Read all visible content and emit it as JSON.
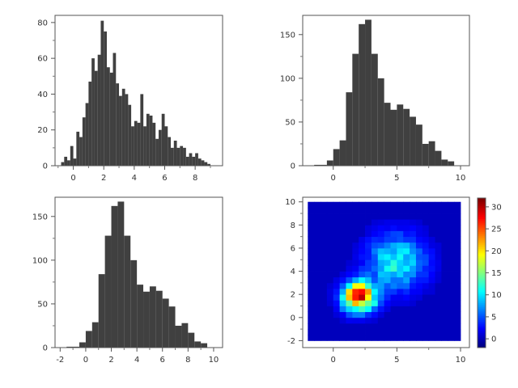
{
  "chart_data": [
    {
      "type": "bar",
      "subtype": "histogram",
      "bar_color": "#404040",
      "bin_width": 0.2,
      "x": [
        -0.8,
        -0.6,
        -0.4,
        -0.2,
        0.0,
        0.2,
        0.4,
        0.6,
        0.8,
        1.0,
        1.2,
        1.4,
        1.6,
        1.8,
        2.0,
        2.2,
        2.4,
        2.6,
        2.8,
        3.0,
        3.2,
        3.4,
        3.6,
        3.8,
        4.0,
        4.2,
        4.4,
        4.6,
        4.8,
        5.0,
        5.2,
        5.4,
        5.6,
        5.8,
        6.0,
        6.2,
        6.4,
        6.6,
        6.8,
        7.0,
        7.2,
        7.4,
        7.6,
        7.8,
        8.0,
        8.2,
        8.4,
        8.6,
        8.8,
        9.0
      ],
      "values": [
        2,
        5,
        3,
        11,
        4,
        19,
        16,
        27,
        35,
        47,
        60,
        53,
        62,
        81,
        75,
        55,
        52,
        63,
        46,
        39,
        43,
        40,
        34,
        22,
        25,
        24,
        40,
        22,
        29,
        28,
        24,
        15,
        20,
        29,
        22,
        16,
        10,
        14,
        10,
        11,
        10,
        5,
        7,
        5,
        7,
        4,
        3,
        2,
        1,
        0
      ],
      "xlim": [
        -1.2,
        9.8
      ],
      "ylim": [
        0,
        84
      ],
      "xticks": [
        0,
        2,
        4,
        6,
        8
      ],
      "xtick_labels": [
        "0",
        "2",
        "4",
        "6",
        "8"
      ],
      "yticks": [
        0,
        20,
        40,
        60,
        80
      ],
      "ytick_labels": [
        "0",
        "20",
        "40",
        "60",
        "80"
      ]
    },
    {
      "type": "bar",
      "subtype": "histogram",
      "bar_color": "#404040",
      "bin_width": 0.5,
      "x": [
        -1.5,
        -1.0,
        -0.5,
        0.0,
        0.5,
        1.0,
        1.5,
        2.0,
        2.5,
        3.0,
        3.5,
        4.0,
        4.5,
        5.0,
        5.5,
        6.0,
        6.5,
        7.0,
        7.5,
        8.0,
        8.5,
        9.0
      ],
      "values": [
        1,
        1,
        6,
        19,
        29,
        84,
        128,
        162,
        167,
        128,
        100,
        72,
        64,
        70,
        65,
        56,
        47,
        25,
        28,
        17,
        7,
        5
      ],
      "xlim": [
        -2.4,
        10.7
      ],
      "ylim": [
        0,
        172
      ],
      "xticks": [
        0,
        5,
        10
      ],
      "xtick_labels": [
        "0",
        "5",
        "10"
      ],
      "yticks": [
        0,
        50,
        100,
        150
      ],
      "ytick_labels": [
        "0",
        "50",
        "100",
        "150"
      ]
    },
    {
      "type": "bar",
      "subtype": "histogram",
      "bar_color": "#404040",
      "bin_width": 0.5,
      "x": [
        -1.5,
        -1.0,
        -0.5,
        0.0,
        0.5,
        1.0,
        1.5,
        2.0,
        2.5,
        3.0,
        3.5,
        4.0,
        4.5,
        5.0,
        5.5,
        6.0,
        6.5,
        7.0,
        7.5,
        8.0,
        8.5,
        9.0
      ],
      "values": [
        1,
        1,
        6,
        19,
        29,
        84,
        128,
        162,
        167,
        128,
        100,
        72,
        64,
        70,
        65,
        56,
        47,
        25,
        28,
        17,
        7,
        5
      ],
      "xlim": [
        -2.4,
        10.7
      ],
      "ylim": [
        0,
        172
      ],
      "xticks": [
        -2,
        0,
        2,
        4,
        6,
        8,
        10
      ],
      "xtick_labels": [
        "-2",
        "0",
        "2",
        "4",
        "6",
        "8",
        "10"
      ],
      "yticks": [
        0,
        50,
        100,
        150
      ],
      "ytick_labels": [
        "0",
        "50",
        "100",
        "150"
      ]
    },
    {
      "type": "heatmap",
      "x_range": [
        -2,
        10
      ],
      "y_range": [
        -2,
        10
      ],
      "xlim": [
        -2.4,
        10.7
      ],
      "ylim": [
        -2.6,
        10.4
      ],
      "xticks": [
        0,
        5,
        10
      ],
      "xtick_labels": [
        "0",
        "5",
        "10"
      ],
      "yticks": [
        -2,
        0,
        2,
        4,
        6,
        8,
        10
      ],
      "ytick_labels": [
        "-2",
        "0",
        "2",
        "4",
        "6",
        "8",
        "10"
      ],
      "colorbar": {
        "range": [
          -2,
          32
        ],
        "ticks": [
          0,
          5,
          10,
          15,
          20,
          25,
          30
        ],
        "tick_labels": [
          "0",
          "5",
          "10",
          "15",
          "20",
          "25",
          "30"
        ],
        "colormap": "jet"
      },
      "peaks": [
        {
          "x": 2.0,
          "y": 1.8,
          "amplitude": 27,
          "sx": 0.9,
          "sy": 0.9
        },
        {
          "x": 5.0,
          "y": 4.8,
          "amplitude": 11,
          "sx": 1.6,
          "sy": 1.7
        }
      ]
    }
  ]
}
